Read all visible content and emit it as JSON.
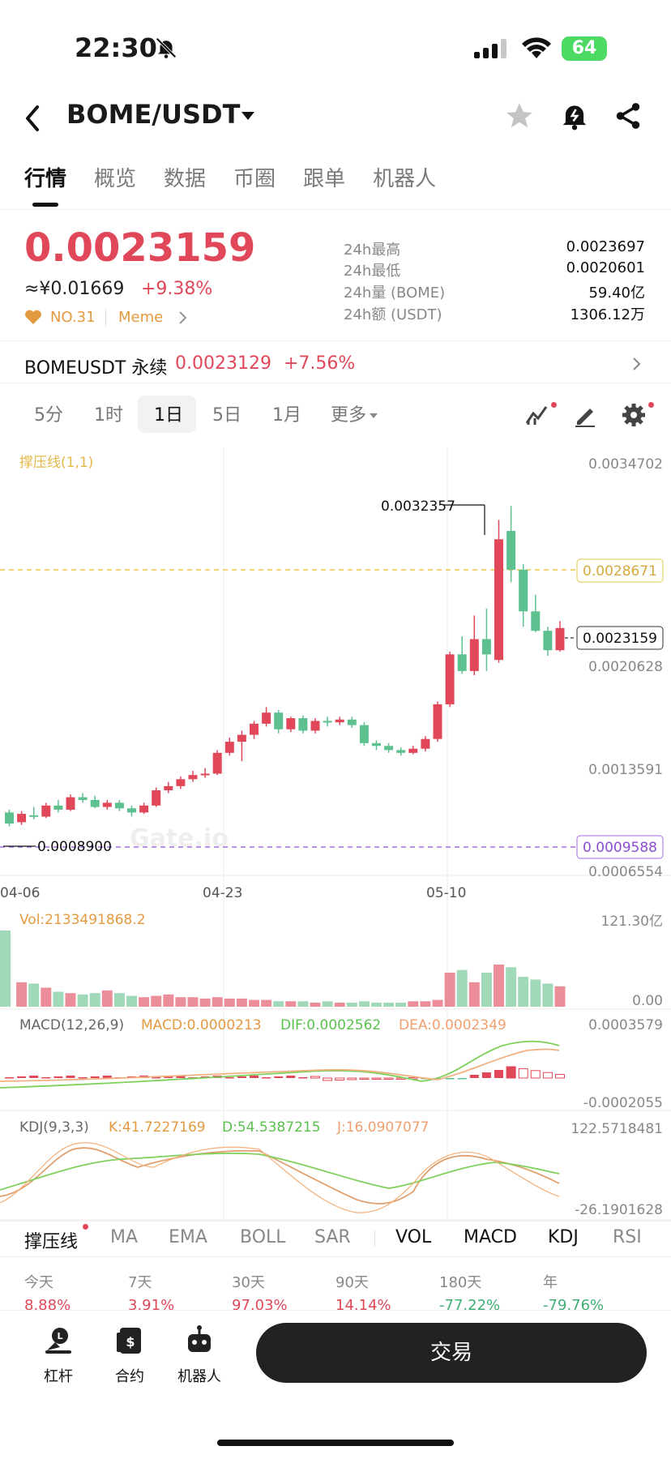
{
  "status": {
    "time": "22:30",
    "battery": "64"
  },
  "header": {
    "pair": "BOME/USDT"
  },
  "tabs": [
    "行情",
    "概览",
    "数据",
    "币圈",
    "跟单",
    "机器人"
  ],
  "ticker": {
    "price": "0.0023159",
    "cny": "≈¥0.01669",
    "change": "+9.38%",
    "rank": "NO.31",
    "tag": "Meme",
    "stats": [
      {
        "label": "24h最高",
        "value": "0.0023697"
      },
      {
        "label": "24h最低",
        "value": "0.0020601"
      },
      {
        "label": "24h量 (BOME)",
        "value": "59.40亿"
      },
      {
        "label": "24h额 (USDT)",
        "value": "1306.12万"
      }
    ]
  },
  "perp": {
    "name": "BOMEUSDT 永续",
    "price": "0.0023129",
    "change": "+7.56%"
  },
  "intervals": [
    "5分",
    "1时",
    "1日",
    "5日",
    "1月",
    "更多"
  ],
  "colors": {
    "up": "#e0485a",
    "down": "#5cc08f",
    "accent": "#e39a41"
  },
  "chart": {
    "indicator_label": "撑压线(1,1)",
    "price_axis": [
      "0.0034702",
      "0.0020628",
      "0.0013591",
      "0.0006554"
    ],
    "high_marker": "0.0032357",
    "low_marker": "0.0008900",
    "resistance": "0.0028671",
    "support": "0.0009588",
    "current": "0.0023159",
    "date_axis": [
      "04-06",
      "04-23",
      "05-10"
    ],
    "watermark": "Gate.io",
    "vol_label": "Vol:2133491868.2",
    "vol_axis": [
      "121.30亿",
      "0.00"
    ],
    "macd_label": "MACD(12,26,9)",
    "macd_value": "MACD:0.0000213",
    "dif_value": "DIF:0.0002562",
    "dea_value": "DEA:0.0002349",
    "macd_axis": [
      "0.0003579",
      "-0.0002055"
    ],
    "kdj_label": "KDJ(9,3,3)",
    "k_value": "K:41.7227169",
    "d_value": "D:54.5387215",
    "j_value": "J:16.0907077",
    "kdj_axis": [
      "122.5718481",
      "-26.1901628"
    ]
  },
  "chart_data": {
    "type": "candlestick",
    "candles": [
      [
        0.00099,
        0.00091,
        0.00101,
        0.00089
      ],
      [
        0.00092,
        0.00098,
        0.001,
        0.0009
      ],
      [
        0.00097,
        0.00096,
        0.00103,
        0.00094
      ],
      [
        0.00096,
        0.00104,
        0.00106,
        0.00095
      ],
      [
        0.00104,
        0.00101,
        0.00108,
        0.00099
      ],
      [
        0.00101,
        0.0011,
        0.00112,
        0.001
      ],
      [
        0.0011,
        0.00108,
        0.00113,
        0.00106
      ],
      [
        0.00108,
        0.00103,
        0.00111,
        0.00102
      ],
      [
        0.00103,
        0.00106,
        0.00108,
        0.00101
      ],
      [
        0.00106,
        0.00102,
        0.00108,
        0.001
      ],
      [
        0.00102,
        0.00099,
        0.00104,
        0.00096
      ],
      [
        0.00099,
        0.00104,
        0.00106,
        0.00098
      ],
      [
        0.00104,
        0.00115,
        0.00117,
        0.00103
      ],
      [
        0.00115,
        0.00118,
        0.00121,
        0.00113
      ],
      [
        0.00118,
        0.00123,
        0.00125,
        0.00116
      ],
      [
        0.00123,
        0.00126,
        0.00129,
        0.00121
      ],
      [
        0.00126,
        0.00127,
        0.00131,
        0.00124
      ],
      [
        0.00127,
        0.00142,
        0.00144,
        0.00126
      ],
      [
        0.00142,
        0.0015,
        0.00153,
        0.0014
      ],
      [
        0.0015,
        0.00155,
        0.00158,
        0.00136
      ],
      [
        0.00155,
        0.00163,
        0.00165,
        0.00152
      ],
      [
        0.00163,
        0.00171,
        0.00175,
        0.00161
      ],
      [
        0.00171,
        0.00159,
        0.00173,
        0.00156
      ],
      [
        0.00159,
        0.00167,
        0.00168,
        0.00157
      ],
      [
        0.00167,
        0.00158,
        0.00169,
        0.00156
      ],
      [
        0.00158,
        0.00165,
        0.00167,
        0.00156
      ],
      [
        0.00165,
        0.00164,
        0.00168,
        0.00161
      ],
      [
        0.00164,
        0.00166,
        0.00168,
        0.00162
      ],
      [
        0.00166,
        0.00162,
        0.00168,
        0.0016
      ],
      [
        0.00162,
        0.00149,
        0.00164,
        0.00147
      ],
      [
        0.00149,
        0.00147,
        0.00151,
        0.00144
      ],
      [
        0.00147,
        0.00144,
        0.00149,
        0.00142
      ],
      [
        0.00144,
        0.00142,
        0.00146,
        0.0014
      ],
      [
        0.00142,
        0.00145,
        0.00147,
        0.00141
      ],
      [
        0.00145,
        0.00152,
        0.00154,
        0.00143
      ],
      [
        0.00152,
        0.00177,
        0.00179,
        0.0015
      ],
      [
        0.00177,
        0.00213,
        0.00215,
        0.00175
      ],
      [
        0.00213,
        0.00201,
        0.00226,
        0.00199
      ],
      [
        0.00201,
        0.00224,
        0.00241,
        0.00198
      ],
      [
        0.00224,
        0.00213,
        0.00246,
        0.00201
      ],
      [
        0.00209,
        0.00296,
        0.0031,
        0.00207
      ],
      [
        0.00302,
        0.00274,
        0.0032,
        0.00265
      ],
      [
        0.00274,
        0.00244,
        0.00278,
        0.00233
      ],
      [
        0.00244,
        0.0023,
        0.00256,
        0.00229
      ],
      [
        0.0023,
        0.00216,
        0.00233,
        0.00212
      ],
      [
        0.00216,
        0.00232,
        0.00237,
        0.00215
      ]
    ],
    "volume": [
      56,
      18,
      17,
      14,
      11,
      10,
      9,
      10,
      12,
      10,
      8,
      7,
      8,
      9,
      7,
      7,
      6,
      7,
      6,
      6,
      5,
      5,
      4,
      4,
      4,
      3,
      4,
      3,
      3,
      4,
      3,
      3,
      3,
      4,
      4,
      5,
      25,
      27,
      18,
      25,
      31,
      29,
      22,
      20,
      17,
      15
    ],
    "ylim": [
      0.00056554,
      0.0034702
    ]
  },
  "indicators": [
    "撑压线",
    "MA",
    "EMA",
    "BOLL",
    "SAR",
    "VOL",
    "MACD",
    "KDJ",
    "RSI"
  ],
  "performance": [
    {
      "label": "今天",
      "value": "8.88%",
      "dir": "up"
    },
    {
      "label": "7天",
      "value": "3.91%",
      "dir": "up"
    },
    {
      "label": "30天",
      "value": "97.03%",
      "dir": "up"
    },
    {
      "label": "90天",
      "value": "14.14%",
      "dir": "up"
    },
    {
      "label": "180天",
      "value": "-77.22%",
      "dir": "down"
    },
    {
      "label": "年",
      "value": "-79.76%",
      "dir": "down"
    }
  ],
  "bottom": {
    "buttons": [
      {
        "label": "杠杆",
        "icon": "leverage-icon"
      },
      {
        "label": "合约",
        "icon": "futures-icon"
      },
      {
        "label": "机器人",
        "icon": "robot-icon"
      }
    ],
    "trade": "交易"
  }
}
